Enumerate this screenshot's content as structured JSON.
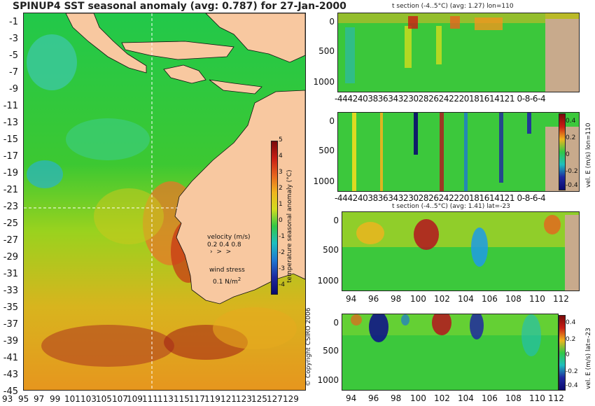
{
  "title": "SPINUP4 SST seasonal anomaly (avg: 0.787) for 27-Jan-2000",
  "map": {
    "lat_ticks": [
      "-1",
      "-3",
      "-5",
      "-7",
      "-9",
      "-11",
      "-13",
      "-15",
      "-17",
      "-19",
      "-21",
      "-23",
      "-25",
      "-27",
      "-29",
      "-31",
      "-33",
      "-35",
      "-37",
      "-39",
      "-41",
      "-43",
      "-45"
    ],
    "lon_ticks": [
      "93",
      "95",
      "97",
      "99",
      "101",
      "103",
      "105",
      "107",
      "109",
      "111",
      "113",
      "115",
      "117",
      "119",
      "121",
      "123",
      "125",
      "127",
      "129"
    ],
    "colorbar": {
      "label": "temperature seasonal anomaly (°C)",
      "ticks": [
        "5",
        "4",
        "3",
        "2",
        "1",
        "0",
        "-1",
        "-2",
        "-3",
        "-4"
      ]
    },
    "legend": {
      "velocity_label": "velocity (m/s)",
      "velocity_scale": "0.2 0.4 0.8",
      "wind_label": "wind stress",
      "wind_value": "0.1 N/m",
      "wind_exp": "2"
    },
    "copyright": "© Copyright CSIRO 2006"
  },
  "panels": {
    "p1": {
      "title": "t section (-4..5°C) (avg: 1.27) lon=110",
      "y_ticks": [
        "0",
        "500",
        "1000"
      ],
      "x_ticks": "-44424038363432302826242220181614121 0-8-6-4"
    },
    "p2": {
      "x_ticks": "-44424038363432302826242220181614121 0-8-6-4",
      "y_ticks": [
        "0",
        "500",
        "1000"
      ],
      "cbar_ticks": [
        "0.4",
        "0.2",
        "0",
        "-0.2",
        "-0.4"
      ],
      "cbar_label": "vel. E (m/s) lon=110"
    },
    "p3": {
      "title": "t section (-4..5°C) (avg: 1.41) lat=-23",
      "y_ticks": [
        "0",
        "500",
        "1000"
      ],
      "x_ticks": [
        "94",
        "96",
        "98",
        "100",
        "102",
        "104",
        "106",
        "108",
        "110",
        "112"
      ]
    },
    "p4": {
      "y_ticks": [
        "0",
        "500",
        "1000"
      ],
      "x_ticks": [
        "94",
        "96",
        "98",
        "100",
        "102",
        "104",
        "106",
        "108",
        "110",
        "112"
      ],
      "cbar_ticks": [
        "0.4",
        "0.2",
        "0",
        "-0.2",
        "-0.4"
      ],
      "cbar_label": "vel. E (m/s) lat=-23"
    }
  },
  "colors": {
    "land": "#f8c8a0",
    "neutral": "#1ec83c",
    "warm": "#b4141e",
    "cool": "#23afd7",
    "seabed": "#c8aa8c"
  }
}
